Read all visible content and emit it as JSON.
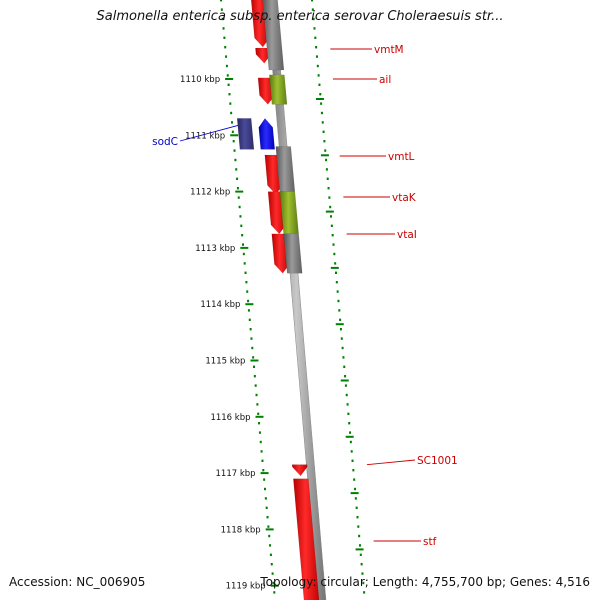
{
  "title": "Salmonella enterica subsp. enterica serovar Choleraesuis str...",
  "footer": {
    "accession": "Accession: NC_006905",
    "topology": "Topology: circular; Length: 4,755,700 bp; Genes: 4,516"
  },
  "ruler": {
    "unit": "kbp",
    "ticks": [
      1110,
      1111,
      1112,
      1113,
      1114,
      1115,
      1116,
      1117,
      1118,
      1119
    ]
  },
  "colors": {
    "forward": "#ff0000",
    "reverse": "#0000ff",
    "reverse_dark": "#3c3c8c",
    "grey": "#808080",
    "olive": "#7a9a1a",
    "scale": "#008000",
    "label_red": "#cc0000",
    "label_blue": "#0000cc",
    "backbone": "#9a9a9a"
  },
  "genes": [
    {
      "name": "vmtM",
      "start_kbp": 1109.45,
      "end_kbp": 1109.72,
      "strand": "+"
    },
    {
      "name": "ail",
      "start_kbp": 1109.98,
      "end_kbp": 1110.45,
      "strand": "+"
    },
    {
      "name": "sodC",
      "start_kbp": 1110.7,
      "end_kbp": 1111.25,
      "strand": "-"
    },
    {
      "name": "vmtL",
      "start_kbp": 1111.35,
      "end_kbp": 1112.05,
      "strand": "+"
    },
    {
      "name": "vtaK",
      "start_kbp": 1112.0,
      "end_kbp": 1112.75,
      "strand": "+"
    },
    {
      "name": "vtaI",
      "start_kbp": 1112.75,
      "end_kbp": 1113.45,
      "strand": "+"
    },
    {
      "name": "SC1001",
      "start_kbp": 1116.85,
      "end_kbp": 1117.05,
      "strand": "+"
    },
    {
      "name": "stf",
      "start_kbp": 1117.1,
      "end_kbp": 1119.6,
      "strand": "+"
    }
  ]
}
